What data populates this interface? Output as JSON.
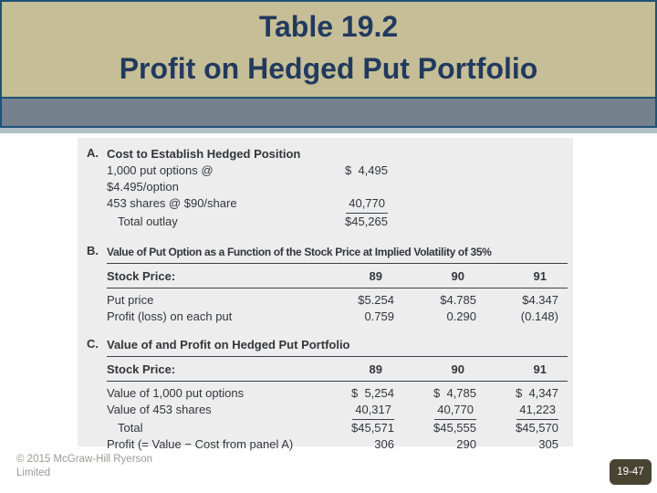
{
  "slide": {
    "title": {
      "line1": "Table 19.2",
      "line2": "Profit on Hedged Put Portfolio"
    }
  },
  "panels": {
    "a": {
      "label": "A.",
      "heading": "Cost to Establish Hedged Position",
      "rows": [
        {
          "label": "1,000 put options @ $4.495/option",
          "value": "$  4,495"
        },
        {
          "label": "453 shares @ $90/share",
          "value": "40,770"
        },
        {
          "label": "Total outlay",
          "value": "$45,265"
        }
      ]
    },
    "b": {
      "label": "B.",
      "heading": "Value of Put Option as a Function of the Stock Price at Implied Volatility of 35%",
      "stock_row": {
        "label": "Stock Price:",
        "prices": [
          "89",
          "90",
          "91"
        ]
      },
      "rows": [
        {
          "label": "Put price",
          "values": [
            "$5.254",
            "$4.785",
            "$4.347"
          ]
        },
        {
          "label": "Profit (loss) on each put",
          "values": [
            "0.759",
            "0.290",
            "(0.148)"
          ]
        }
      ]
    },
    "c": {
      "label": "C.",
      "heading": "Value of and Profit on Hedged Put Portfolio",
      "stock_row": {
        "label": "Stock Price:",
        "prices": [
          "89",
          "90",
          "91"
        ]
      },
      "rows": [
        {
          "label": "Value of 1,000 put options",
          "values": [
            "$  5,254",
            "$  4,785",
            "$  4,347"
          ]
        },
        {
          "label": "Value of 453 shares",
          "values": [
            "40,317",
            "40,770",
            "41,223"
          ]
        },
        {
          "label": "Total",
          "values": [
            "$45,571",
            "$45,555",
            "$45,570"
          ]
        },
        {
          "label": "Profit (= Value − Cost from panel A)",
          "values": [
            "306",
            "290",
            "305"
          ]
        }
      ]
    }
  },
  "footer": {
    "copyright_line1": "© 2015 McGraw-Hill Ryerson",
    "copyright_line2": "Limited",
    "page_badge": "19-47"
  },
  "colors": {
    "header_bg": "#c6be96",
    "title_text": "#223a5e",
    "border_blue": "#1e5278",
    "gray_band": "#75818d",
    "light_strip": "#b0bfc7",
    "panel_bg": "#ededee",
    "table_text": "#31363b",
    "rule": "#3c4146",
    "footer_text": "#9b9a92",
    "badge_bg": "#494431",
    "badge_text": "#ffffff"
  }
}
